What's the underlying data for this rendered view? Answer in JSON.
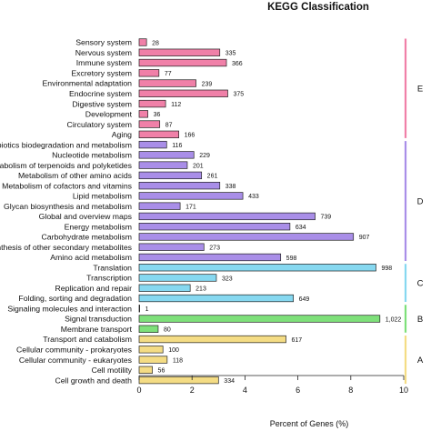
{
  "chart_data": {
    "type": "bar",
    "orientation": "horizontal",
    "title": "KEGG Classification",
    "xlabel": "Percent of Genes (%)",
    "ylabel": "",
    "xlim": [
      0,
      10
    ],
    "xticks": [
      "0",
      "2",
      "4",
      "6",
      "8",
      "10"
    ],
    "grid": false,
    "categories": [
      {
        "name": "Sensory system",
        "value": 0.28,
        "label": "28",
        "group": "E"
      },
      {
        "name": "Nervous system",
        "value": 3.05,
        "label": "335",
        "group": "E"
      },
      {
        "name": "Immune system",
        "value": 3.3,
        "label": "366",
        "group": "E"
      },
      {
        "name": "Excretory system",
        "value": 0.75,
        "label": "77",
        "group": "E"
      },
      {
        "name": "Environmental adaptation",
        "value": 2.15,
        "label": "239",
        "group": "E"
      },
      {
        "name": "Endocrine system",
        "value": 3.35,
        "label": "375",
        "group": "E"
      },
      {
        "name": "Digestive system",
        "value": 1.0,
        "label": "112",
        "group": "E"
      },
      {
        "name": "Development",
        "value": 0.33,
        "label": "36",
        "group": "E"
      },
      {
        "name": "Circulatory system",
        "value": 0.78,
        "label": "87",
        "group": "E"
      },
      {
        "name": "Aging",
        "value": 1.5,
        "label": "166",
        "group": "E"
      },
      {
        "name": "Xenobiotics biodegradation and metabolism",
        "value": 1.04,
        "label": "116",
        "group": "D"
      },
      {
        "name": "Nucleotide metabolism",
        "value": 2.07,
        "label": "229",
        "group": "D"
      },
      {
        "name": "Metabolism of terpenoids and polyketides",
        "value": 1.82,
        "label": "201",
        "group": "D"
      },
      {
        "name": "Metabolism of other amino acids",
        "value": 2.36,
        "label": "261",
        "group": "D"
      },
      {
        "name": "Metabolism of cofactors and vitamins",
        "value": 3.05,
        "label": "338",
        "group": "D"
      },
      {
        "name": "Lipid metabolism",
        "value": 3.92,
        "label": "433",
        "group": "D"
      },
      {
        "name": "Glycan biosynthesis and metabolism",
        "value": 1.55,
        "label": "171",
        "group": "D"
      },
      {
        "name": "Global and overview maps",
        "value": 6.65,
        "label": "739",
        "group": "D"
      },
      {
        "name": "Energy metabolism",
        "value": 5.7,
        "label": "634",
        "group": "D"
      },
      {
        "name": "Carbohydrate metabolism",
        "value": 8.1,
        "label": "907",
        "group": "D"
      },
      {
        "name": "Biosynthesis of other secondary metabolites",
        "value": 2.45,
        "label": "273",
        "group": "D"
      },
      {
        "name": "Amino acid metabolism",
        "value": 5.35,
        "label": "598",
        "group": "D"
      },
      {
        "name": "Translation",
        "value": 8.95,
        "label": "998",
        "group": "C"
      },
      {
        "name": "Transcription",
        "value": 2.92,
        "label": "323",
        "group": "C"
      },
      {
        "name": "Replication and repair",
        "value": 1.93,
        "label": "213",
        "group": "C"
      },
      {
        "name": "Folding, sorting and degradation",
        "value": 5.83,
        "label": "649",
        "group": "C"
      },
      {
        "name": "Signaling molecules and interaction",
        "value": 0.02,
        "label": "1",
        "group": "B"
      },
      {
        "name": "Signal transduction",
        "value": 9.1,
        "label": "1,022",
        "group": "B"
      },
      {
        "name": "Membrane transport",
        "value": 0.72,
        "label": "80",
        "group": "B"
      },
      {
        "name": "Transport and catabolism",
        "value": 5.55,
        "label": "617",
        "group": "A"
      },
      {
        "name": "Cellular community - prokaryotes",
        "value": 0.9,
        "label": "100",
        "group": "A"
      },
      {
        "name": "Cellular community - eukaryotes",
        "value": 1.06,
        "label": "118",
        "group": "A"
      },
      {
        "name": "Cell motility",
        "value": 0.5,
        "label": "56",
        "group": "A"
      },
      {
        "name": "Cell growth and death",
        "value": 3.0,
        "label": "334",
        "group": "A"
      }
    ],
    "groups": [
      {
        "id": "E",
        "label": "E",
        "color": "#f080a8"
      },
      {
        "id": "D",
        "label": "D",
        "color": "#a98ee8"
      },
      {
        "id": "C",
        "label": "C",
        "color": "#86d8f0"
      },
      {
        "id": "B",
        "label": "B",
        "color": "#7ee07a"
      },
      {
        "id": "A",
        "label": "A",
        "color": "#f4dc84"
      }
    ]
  }
}
